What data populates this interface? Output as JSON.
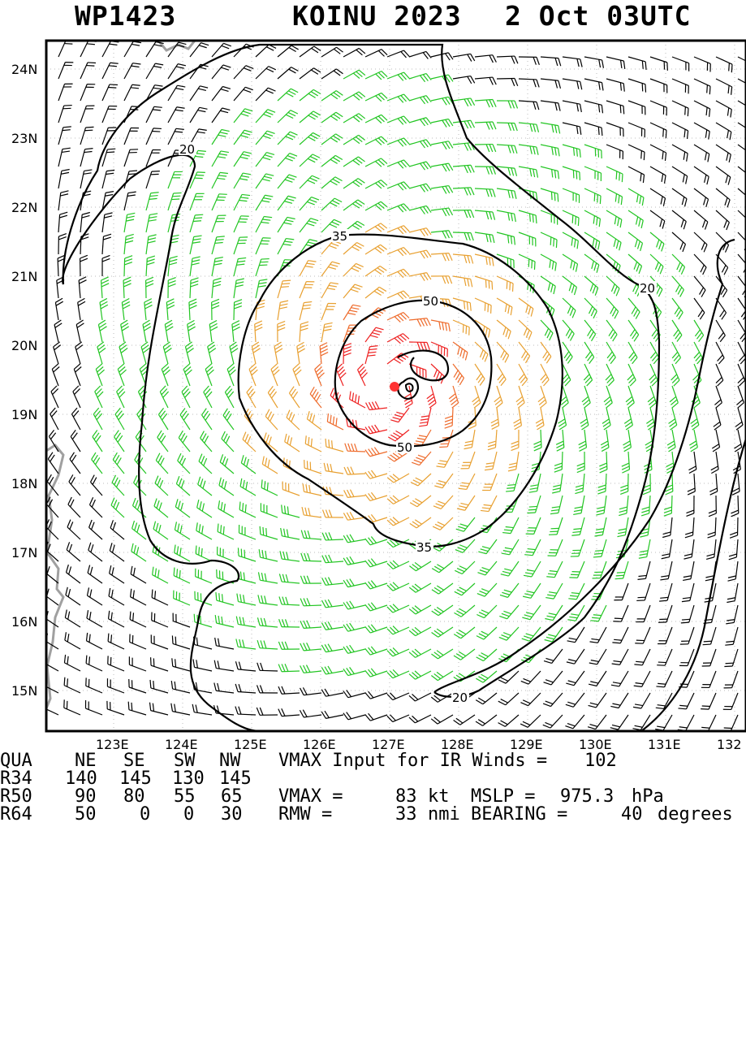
{
  "header": {
    "storm_id": "WP1423",
    "storm_name_year": "KOINU 2023",
    "datetime": "2 Oct 03UTC"
  },
  "map": {
    "lat_labels": [
      "24N",
      "23N",
      "22N",
      "21N",
      "20N",
      "19N",
      "18N",
      "17N",
      "16N",
      "15N"
    ],
    "lon_labels": [
      "123E",
      "124E",
      "125E",
      "126E",
      "127E",
      "128E",
      "129E",
      "130E",
      "131E",
      "132"
    ],
    "contour_labels": [
      "20",
      "35",
      "50",
      "50",
      "35",
      "20",
      "20"
    ],
    "center": {
      "lat": 19.45,
      "lon": 127.05
    },
    "colors": {
      "calm": "#000000",
      "gale": "#22c522",
      "storm": "#e8a030",
      "strong": "#ee6a2a",
      "hurricane": "#ee2020",
      "center": "#ff3333",
      "land": "#a0a0a0"
    }
  },
  "table": {
    "header": [
      "QUA",
      "NE",
      "SE",
      "SW",
      "NW"
    ],
    "rows": [
      {
        "label": "R34",
        "values": [
          "140",
          "145",
          "130",
          "145"
        ]
      },
      {
        "label": "R50",
        "values": [
          "90",
          "80",
          "55",
          "65"
        ]
      },
      {
        "label": "R64",
        "values": [
          "50",
          "0",
          "0",
          "30"
        ]
      }
    ],
    "vmax_input_label": "VMAX Input for IR Winds =",
    "vmax_input_value": "102",
    "vmax_label": "VMAX =",
    "vmax_value": "83",
    "vmax_unit": "kt",
    "mslp_label": "MSLP =",
    "mslp_value": "975.3",
    "mslp_unit": "hPa",
    "rmw_label": "RMW =",
    "rmw_value": "33",
    "rmw_unit": "nmi",
    "bearing_label": "BEARING =",
    "bearing_value": "40",
    "bearing_unit": "degrees"
  }
}
